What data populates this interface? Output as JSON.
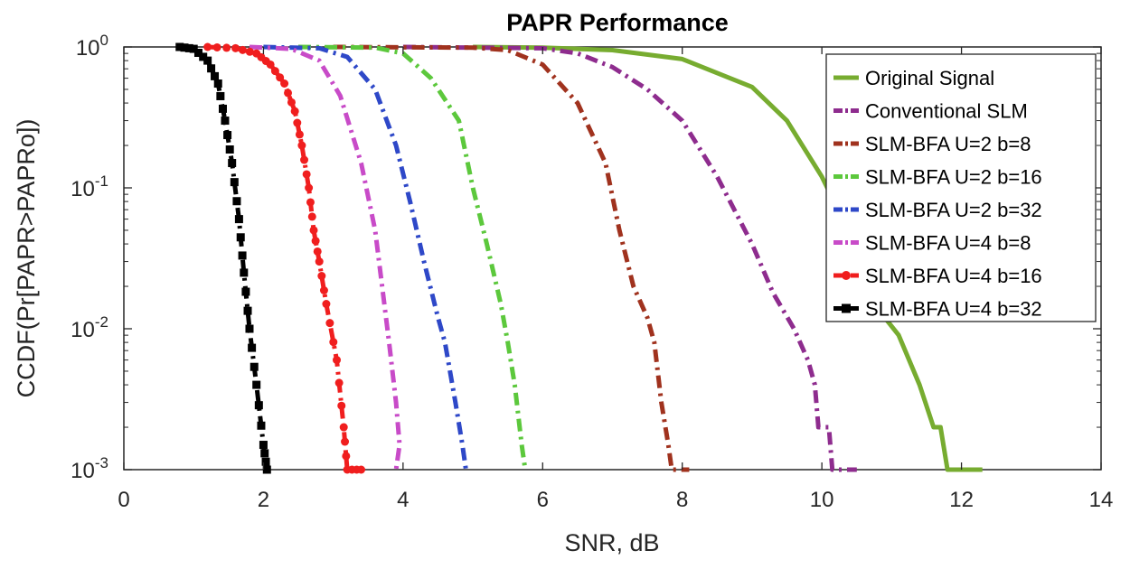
{
  "chart_data": {
    "type": "line",
    "title": "PAPR Performance",
    "xlabel": "SNR, dB",
    "ylabel": "CCDF(Pr[PAPR>PAPRo])",
    "xlim": [
      0,
      14
    ],
    "ylim": [
      0.001,
      1
    ],
    "yscale": "log",
    "xticks": [
      "0",
      "2",
      "4",
      "6",
      "8",
      "10",
      "12",
      "14"
    ],
    "yticks": [
      {
        "base": "10",
        "exp": "0"
      },
      {
        "base": "10",
        "exp": "-1"
      },
      {
        "base": "10",
        "exp": "-2"
      },
      {
        "base": "10",
        "exp": "-3"
      }
    ],
    "legend_position": "top-right",
    "series": [
      {
        "name": "Original Signal",
        "color": "#77ac30",
        "style": "solid",
        "marker": "none",
        "points": [
          [
            5.0,
            1.0
          ],
          [
            6.0,
            0.99
          ],
          [
            7.0,
            0.95
          ],
          [
            8.0,
            0.82
          ],
          [
            9.0,
            0.52
          ],
          [
            9.5,
            0.3
          ],
          [
            10.0,
            0.12
          ],
          [
            10.3,
            0.06
          ],
          [
            10.6,
            0.03
          ],
          [
            10.9,
            0.012
          ],
          [
            11.1,
            0.009
          ],
          [
            11.4,
            0.004
          ],
          [
            11.6,
            0.002
          ],
          [
            11.7,
            0.002
          ],
          [
            11.8,
            0.001
          ],
          [
            12.3,
            0.001
          ]
        ]
      },
      {
        "name": "Conventional SLM",
        "color": "#8e2c8e",
        "style": "dashdot",
        "marker": "none",
        "points": [
          [
            4.0,
            1.0
          ],
          [
            6.0,
            0.98
          ],
          [
            6.5,
            0.9
          ],
          [
            7.0,
            0.72
          ],
          [
            7.5,
            0.5
          ],
          [
            8.0,
            0.3
          ],
          [
            8.5,
            0.12
          ],
          [
            9.0,
            0.04
          ],
          [
            9.3,
            0.018
          ],
          [
            9.6,
            0.01
          ],
          [
            9.8,
            0.006
          ],
          [
            9.9,
            0.004
          ],
          [
            9.95,
            0.002
          ],
          [
            10.1,
            0.002
          ],
          [
            10.15,
            0.001
          ],
          [
            10.5,
            0.001
          ]
        ]
      },
      {
        "name": "SLM-BFA U=2 b=8",
        "color": "#a0321e",
        "style": "dashdot",
        "marker": "none",
        "points": [
          [
            3.0,
            1.0
          ],
          [
            5.0,
            0.99
          ],
          [
            5.5,
            0.95
          ],
          [
            6.0,
            0.75
          ],
          [
            6.5,
            0.4
          ],
          [
            6.9,
            0.15
          ],
          [
            7.1,
            0.05
          ],
          [
            7.3,
            0.02
          ],
          [
            7.5,
            0.012
          ],
          [
            7.6,
            0.008
          ],
          [
            7.7,
            0.003
          ],
          [
            7.8,
            0.0015
          ],
          [
            7.85,
            0.001
          ],
          [
            8.1,
            0.001
          ]
        ]
      },
      {
        "name": "SLM-BFA U=2 b=16",
        "color": "#5cc83c",
        "style": "dashdot",
        "marker": "none",
        "points": [
          [
            2.5,
            1.0
          ],
          [
            3.6,
            0.99
          ],
          [
            4.0,
            0.9
          ],
          [
            4.4,
            0.6
          ],
          [
            4.8,
            0.3
          ],
          [
            5.0,
            0.1
          ],
          [
            5.2,
            0.04
          ],
          [
            5.4,
            0.015
          ],
          [
            5.5,
            0.008
          ],
          [
            5.6,
            0.004
          ],
          [
            5.7,
            0.0015
          ],
          [
            5.75,
            0.001
          ]
        ]
      },
      {
        "name": "SLM-BFA U=2 b=32",
        "color": "#2e48c8",
        "style": "dashdot",
        "marker": "none",
        "points": [
          [
            2.0,
            1.0
          ],
          [
            2.8,
            0.98
          ],
          [
            3.2,
            0.85
          ],
          [
            3.6,
            0.5
          ],
          [
            3.9,
            0.2
          ],
          [
            4.1,
            0.08
          ],
          [
            4.3,
            0.03
          ],
          [
            4.5,
            0.012
          ],
          [
            4.6,
            0.008
          ],
          [
            4.75,
            0.003
          ],
          [
            4.85,
            0.0015
          ],
          [
            4.9,
            0.001
          ]
        ]
      },
      {
        "name": "SLM-BFA U=4 b=8",
        "color": "#c84bc8",
        "style": "dashdot",
        "marker": "none",
        "points": [
          [
            1.8,
            1.0
          ],
          [
            2.4,
            0.97
          ],
          [
            2.8,
            0.8
          ],
          [
            3.1,
            0.45
          ],
          [
            3.4,
            0.15
          ],
          [
            3.6,
            0.05
          ],
          [
            3.7,
            0.02
          ],
          [
            3.8,
            0.008
          ],
          [
            3.9,
            0.003
          ],
          [
            3.95,
            0.0015
          ],
          [
            3.9,
            0.001
          ]
        ]
      },
      {
        "name": "SLM-BFA U=4 b=16",
        "color": "#f01e1e",
        "style": "dashdot",
        "marker": "circle",
        "points": [
          [
            1.2,
            1.0
          ],
          [
            1.6,
            0.98
          ],
          [
            1.9,
            0.9
          ],
          [
            2.1,
            0.75
          ],
          [
            2.3,
            0.55
          ],
          [
            2.45,
            0.35
          ],
          [
            2.55,
            0.2
          ],
          [
            2.65,
            0.1
          ],
          [
            2.72,
            0.05
          ],
          [
            2.8,
            0.03
          ],
          [
            2.9,
            0.015
          ],
          [
            3.05,
            0.006
          ],
          [
            3.15,
            0.002
          ],
          [
            3.2,
            0.001
          ],
          [
            3.4,
            0.001
          ]
        ]
      },
      {
        "name": "SLM-BFA U=4 b=32",
        "color": "#000000",
        "style": "dashdot",
        "marker": "square",
        "points": [
          [
            0.8,
            1.0
          ],
          [
            1.0,
            0.97
          ],
          [
            1.2,
            0.8
          ],
          [
            1.35,
            0.55
          ],
          [
            1.45,
            0.3
          ],
          [
            1.55,
            0.15
          ],
          [
            1.65,
            0.06
          ],
          [
            1.72,
            0.025
          ],
          [
            1.8,
            0.01
          ],
          [
            1.9,
            0.004
          ],
          [
            2.0,
            0.0015
          ],
          [
            2.05,
            0.001
          ]
        ]
      }
    ]
  }
}
